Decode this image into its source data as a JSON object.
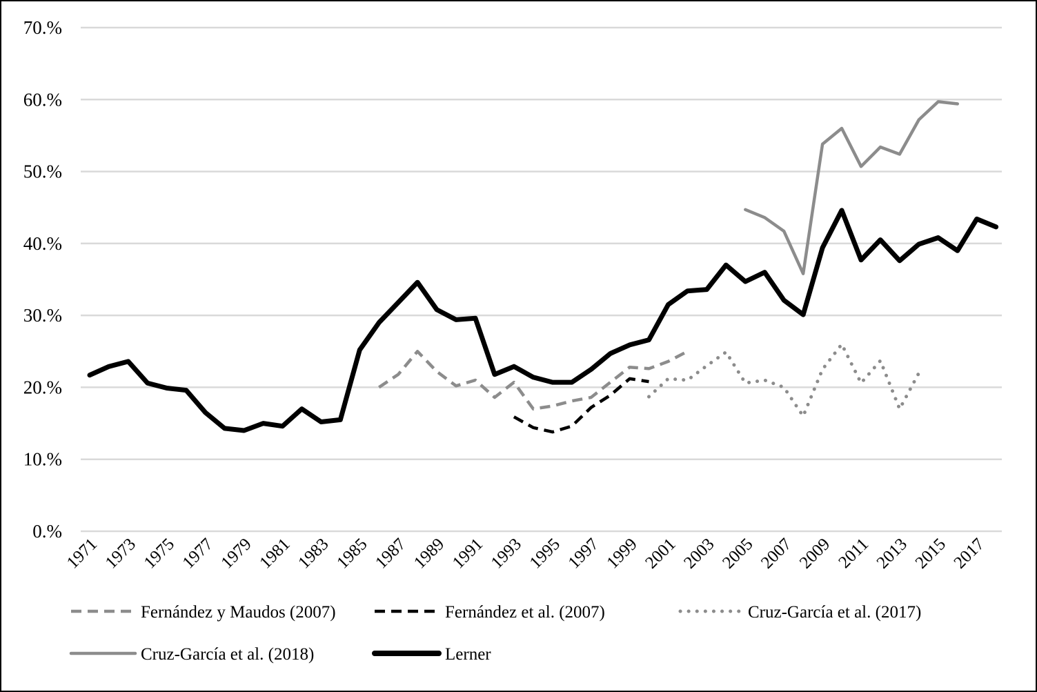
{
  "chart_data": {
    "type": "line",
    "title": "",
    "xlabel": "",
    "ylabel": "",
    "ylim": [
      0,
      70
    ],
    "y_ticks": [
      0,
      10,
      20,
      30,
      40,
      50,
      60,
      70
    ],
    "y_tick_labels": [
      "0.%",
      "10.%",
      "20.%",
      "30.%",
      "40.%",
      "50.%",
      "60.%",
      "70.%"
    ],
    "x_range": [
      1971,
      2018
    ],
    "x_tick_labels": [
      "1971",
      "1973",
      "1975",
      "1977",
      "1979",
      "1981",
      "1983",
      "1985",
      "1987",
      "1989",
      "1991",
      "1993",
      "1995",
      "1997",
      "1999",
      "2001",
      "2003",
      "2005",
      "2007",
      "2009",
      "2011",
      "2013",
      "2015",
      "2017"
    ],
    "grid": true,
    "legend_position": "bottom",
    "series": [
      {
        "name": "Fernández y Maudos (2007)",
        "color": "#8c8c8c",
        "style": "dashed",
        "x": [
          1986,
          1987,
          1988,
          1989,
          1990,
          1991,
          1992,
          1993,
          1994,
          1995,
          1996,
          1997,
          1998,
          1999,
          2000,
          2001,
          2002
        ],
        "values": [
          20.0,
          21.8,
          25.0,
          22.2,
          20.2,
          21.0,
          18.6,
          20.7,
          17.0,
          17.4,
          18.1,
          18.6,
          20.7,
          22.8,
          22.6,
          23.6,
          25.0
        ]
      },
      {
        "name": "Fernández et al. (2007)",
        "color": "#000000",
        "style": "dashed",
        "x": [
          1993,
          1994,
          1995,
          1996,
          1997,
          1998,
          1999,
          2000
        ],
        "values": [
          15.9,
          14.4,
          13.8,
          14.6,
          17.2,
          18.9,
          21.2,
          20.8
        ]
      },
      {
        "name": "Cruz-García et al. (2017)",
        "color": "#8c8c8c",
        "style": "dotted",
        "x": [
          2000,
          2001,
          2002,
          2003,
          2004,
          2005,
          2006,
          2007,
          2008,
          2009,
          2010,
          2011,
          2012,
          2013,
          2014
        ],
        "values": [
          18.7,
          21.2,
          21.0,
          23.0,
          24.9,
          20.6,
          21.0,
          20.0,
          16.0,
          22.5,
          26.0,
          20.6,
          23.7,
          17.0,
          22.0
        ]
      },
      {
        "name": "Cruz-García et al. (2018)",
        "color": "#8c8c8c",
        "style": "solid",
        "x": [
          2005,
          2006,
          2007,
          2008,
          2009,
          2010,
          2011,
          2012,
          2013,
          2014,
          2015,
          2016
        ],
        "values": [
          44.7,
          43.6,
          41.7,
          35.8,
          53.8,
          56.0,
          50.7,
          53.4,
          52.4,
          57.2,
          59.7,
          59.4
        ]
      },
      {
        "name": "Lerner",
        "color": "#000000",
        "style": "solid-thick",
        "x": [
          1971,
          1972,
          1973,
          1974,
          1975,
          1976,
          1977,
          1978,
          1979,
          1980,
          1981,
          1982,
          1983,
          1984,
          1985,
          1986,
          1987,
          1988,
          1989,
          1990,
          1991,
          1992,
          1993,
          1994,
          1995,
          1996,
          1997,
          1998,
          1999,
          2000,
          2001,
          2002,
          2003,
          2004,
          2005,
          2006,
          2007,
          2008,
          2009,
          2010,
          2011,
          2012,
          2013,
          2014,
          2015,
          2016,
          2017,
          2018
        ],
        "values": [
          21.7,
          22.9,
          23.6,
          20.6,
          19.9,
          19.6,
          16.5,
          14.3,
          14.0,
          15.0,
          14.6,
          17.0,
          15.2,
          15.5,
          25.2,
          29.0,
          31.8,
          34.6,
          30.8,
          29.4,
          29.6,
          21.8,
          22.9,
          21.4,
          20.7,
          20.7,
          22.5,
          24.7,
          25.9,
          26.6,
          31.5,
          33.4,
          33.6,
          37.0,
          34.7,
          36.0,
          32.1,
          30.1,
          39.4,
          44.6,
          37.7,
          40.5,
          37.6,
          39.9,
          40.8,
          39.0,
          43.4,
          42.3
        ]
      }
    ]
  }
}
